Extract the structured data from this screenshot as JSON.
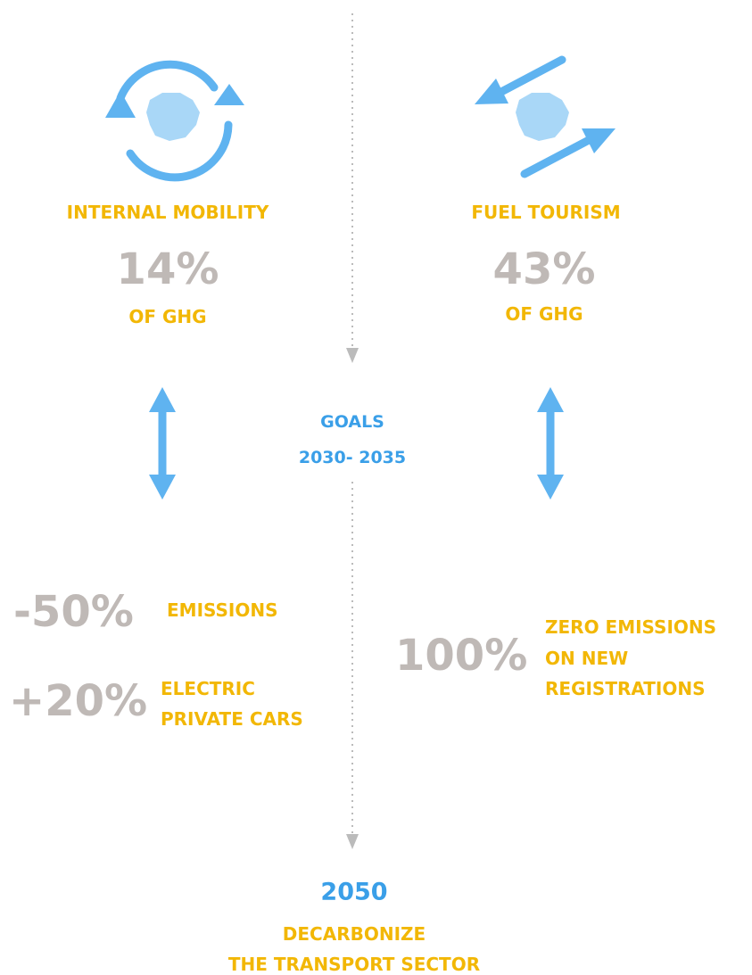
{
  "left": {
    "title": "INTERNAL MOBILITY",
    "share": "14%",
    "share_label": "OF GHG"
  },
  "right": {
    "title": "FUEL TOURISM",
    "share": "43%",
    "share_label": "OF GHG"
  },
  "goals": {
    "title": "GOALS",
    "period": "2030- 2035"
  },
  "left_goals": [
    {
      "value": "-50%",
      "lines": [
        "EMISSIONS"
      ]
    },
    {
      "value": "+20%",
      "lines": [
        "ELECTRIC",
        "PRIVATE CARS"
      ]
    }
  ],
  "right_goals": [
    {
      "value": "100%",
      "lines": [
        "ZERO EMISSIONS",
        "ON NEW",
        "REGISTRATIONS"
      ]
    }
  ],
  "final": {
    "year": "2050",
    "lines": [
      "DECARBONIZE",
      "THE TRANSPORT SECTOR"
    ]
  }
}
